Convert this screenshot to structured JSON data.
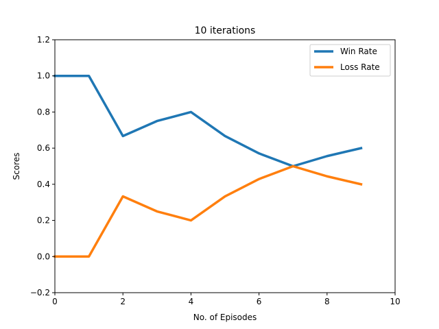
{
  "chart_data": {
    "type": "line",
    "title": "10 iterations",
    "xlabel": "No. of Episodes",
    "ylabel": "Scores",
    "xlim": [
      0,
      10
    ],
    "ylim": [
      -0.2,
      1.2
    ],
    "xticks": [
      0,
      2,
      4,
      6,
      8,
      10
    ],
    "xtick_labels": [
      "0",
      "2",
      "4",
      "6",
      "8",
      "10"
    ],
    "yticks": [
      -0.2,
      0.0,
      0.2,
      0.4,
      0.6,
      0.8,
      1.0,
      1.2
    ],
    "ytick_labels": [
      "−0.2",
      "0.0",
      "0.2",
      "0.4",
      "0.6",
      "0.8",
      "1.0",
      "1.2"
    ],
    "grid": false,
    "legend_position": "top-right",
    "x": [
      0,
      1,
      2,
      3,
      4,
      5,
      6,
      7,
      8,
      9
    ],
    "series": [
      {
        "name": "Win Rate",
        "color": "#1f77b4",
        "values": [
          1.0,
          1.0,
          0.667,
          0.75,
          0.8,
          0.667,
          0.571,
          0.5,
          0.556,
          0.6
        ]
      },
      {
        "name": "Loss Rate",
        "color": "#ff7f0e",
        "values": [
          0.0,
          0.0,
          0.333,
          0.25,
          0.2,
          0.333,
          0.429,
          0.5,
          0.444,
          0.4
        ]
      }
    ]
  }
}
